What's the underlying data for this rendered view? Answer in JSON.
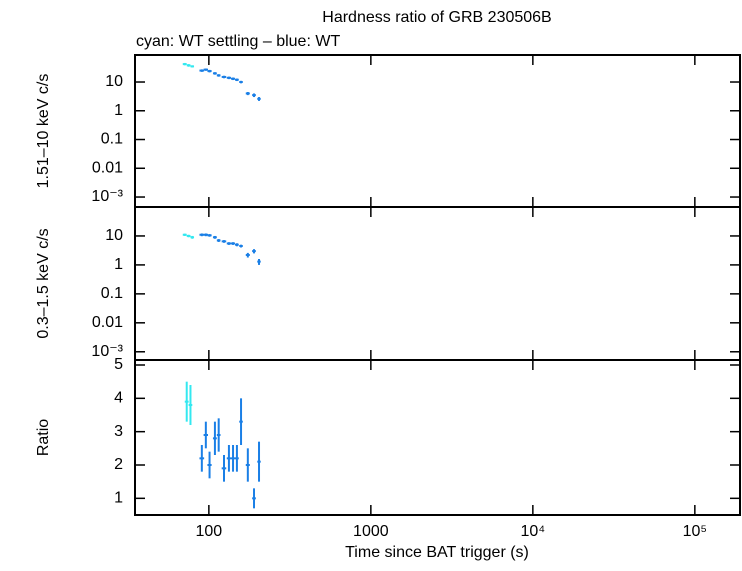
{
  "chart_data": [
    {
      "type": "scatter",
      "title": "Hardness ratio of GRB 230506B",
      "subtitle": "cyan: WT settling – blue: WT",
      "ylabel": "1.51–10 keV c/s",
      "ylog": true,
      "xlog": true,
      "xlim": [
        35,
        190000
      ],
      "ylim": [
        0.00045,
        87
      ],
      "yticks": [
        10,
        1,
        0.1,
        0.01,
        {
          "value": 0.001,
          "label": "10⁻³"
        }
      ],
      "series": [
        {
          "name": "WT settling",
          "color": "#33e8f0",
          "x": [
            71,
            75,
            79
          ],
          "xerr": [
            2,
            2,
            2
          ],
          "values": [
            42,
            38,
            35
          ],
          "yerr": [
            4,
            4,
            3
          ]
        },
        {
          "name": "WT",
          "color": "#1a7fe6",
          "x": [
            90.5,
            95.8,
            101,
            109,
            115,
            124,
            133,
            141,
            149,
            158,
            174,
            190,
            204
          ],
          "xerr": [
            3,
            3,
            3,
            3,
            3,
            4,
            4,
            4,
            4,
            4,
            5,
            5,
            5
          ],
          "values": [
            25,
            27,
            24,
            20,
            17,
            15,
            14,
            13,
            12,
            10,
            4,
            3.5,
            2.6
          ],
          "yerr": [
            2.5,
            2.5,
            2.4,
            2,
            1.7,
            1.5,
            1.4,
            1.3,
            1.2,
            1,
            0.5,
            0.5,
            0.4
          ]
        }
      ]
    },
    {
      "type": "scatter",
      "ylabel": "0.3–1.5 keV c/s",
      "ylog": true,
      "xlog": true,
      "xlim": [
        35,
        190000
      ],
      "ylim": [
        0.00052,
        100
      ],
      "yticks": [
        10,
        1,
        0.1,
        0.01,
        {
          "value": 0.001,
          "label": "10⁻³"
        }
      ],
      "series": [
        {
          "name": "WT settling",
          "color": "#33e8f0",
          "x": [
            71,
            75,
            79
          ],
          "xerr": [
            2,
            2,
            2
          ],
          "values": [
            11,
            10,
            9
          ],
          "yerr": [
            1,
            1,
            1
          ]
        },
        {
          "name": "WT",
          "color": "#1a7fe6",
          "x": [
            90.5,
            95.8,
            101,
            109,
            115,
            124,
            133,
            141,
            149,
            158,
            174,
            190,
            204
          ],
          "xerr": [
            3,
            3,
            3,
            3,
            3,
            4,
            4,
            4,
            4,
            4,
            5,
            5,
            5
          ],
          "values": [
            11,
            11,
            10.5,
            9,
            7,
            6.5,
            5.5,
            5.5,
            5,
            4.5,
            2.2,
            3,
            1.3
          ],
          "yerr": [
            1.2,
            1.2,
            1.1,
            1,
            0.8,
            0.7,
            0.6,
            0.6,
            0.6,
            0.5,
            0.4,
            0.5,
            0.3
          ]
        }
      ]
    },
    {
      "type": "scatter",
      "ylabel": "Ratio",
      "xlabel": "Time since BAT trigger (s)",
      "ylog": false,
      "xlog": true,
      "xlim": [
        35,
        190000
      ],
      "ylim": [
        0.5,
        5.15
      ],
      "yticks": [
        1,
        2,
        3,
        4,
        5
      ],
      "xticks": [
        100,
        1000,
        {
          "value": 10000,
          "label": "10⁴"
        },
        {
          "value": 100000,
          "label": "10⁵"
        }
      ],
      "series": [
        {
          "name": "WT settling",
          "color": "#33e8f0",
          "x": [
            73,
            77
          ],
          "xerr": [
            2,
            2
          ],
          "values": [
            3.9,
            3.8
          ],
          "yerr": [
            0.6,
            0.6
          ]
        },
        {
          "name": "WT",
          "color": "#1a7fe6",
          "x": [
            90.5,
            95.8,
            101,
            109,
            115,
            124,
            133,
            141,
            149,
            158,
            174,
            190,
            204
          ],
          "xerr": [
            3,
            3,
            3,
            3,
            3,
            4,
            4,
            4,
            4,
            4,
            5,
            5,
            5
          ],
          "values": [
            2.2,
            2.9,
            2.0,
            2.8,
            2.9,
            1.9,
            2.2,
            2.2,
            2.2,
            3.3,
            2.0,
            1.0,
            2.1
          ],
          "yerr": [
            0.4,
            0.4,
            0.4,
            0.5,
            0.5,
            0.4,
            0.4,
            0.4,
            0.4,
            0.7,
            0.5,
            0.3,
            0.6
          ]
        }
      ]
    }
  ]
}
